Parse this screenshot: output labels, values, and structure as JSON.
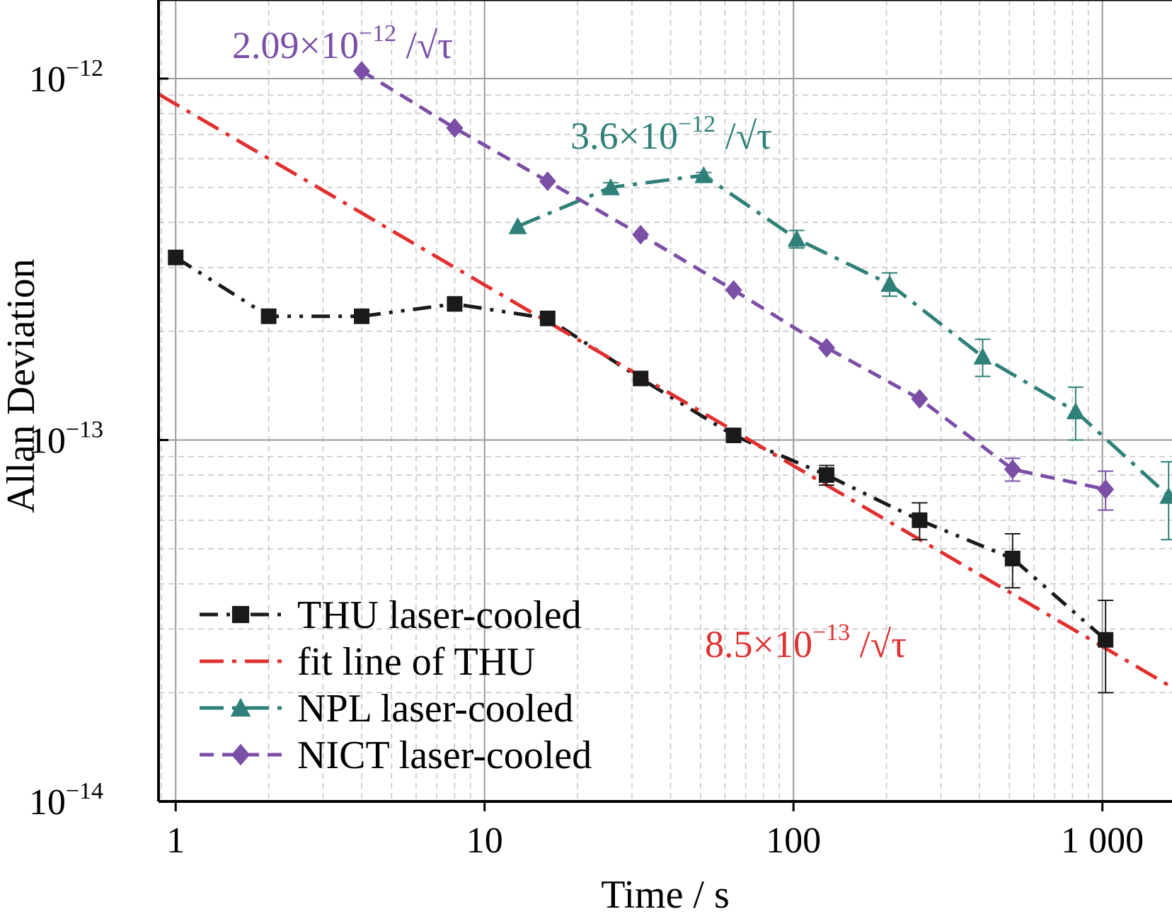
{
  "chart_data": {
    "type": "line",
    "x_scale": "log",
    "y_scale": "log",
    "xlim": [
      0.88,
      1680
    ],
    "ylim": [
      1e-14,
      1.65e-12
    ],
    "xlabel": "Time / s",
    "ylabel": "Allan Deviation",
    "grid": true,
    "legend_position": "bottom-left",
    "x_ticks": [
      {
        "value": 1,
        "label": "1"
      },
      {
        "value": 10,
        "label": "10"
      },
      {
        "value": 100,
        "label": "100"
      },
      {
        "value": 1000,
        "label": "1 000"
      }
    ],
    "y_ticks": [
      {
        "value": 1e-14,
        "base": "10",
        "exp": "−14"
      },
      {
        "value": 1e-13,
        "base": "10",
        "exp": "−13"
      },
      {
        "value": 1e-12,
        "base": "10",
        "exp": "−12"
      }
    ],
    "series": [
      {
        "name": "THU laser-cooled",
        "color": "#1a1a1a",
        "marker": "square",
        "dash": "dashdotdot",
        "x": [
          1,
          2,
          4,
          8,
          16,
          32,
          64,
          128,
          256,
          512,
          1024
        ],
        "y": [
          3.2e-13,
          2.2e-13,
          2.2e-13,
          2.38e-13,
          2.17e-13,
          1.48e-13,
          1.03e-13,
          8e-14,
          6e-14,
          4.7e-14,
          2.8e-14
        ],
        "err": [
          0,
          0,
          0,
          0,
          0,
          0,
          7e-16,
          5e-15,
          7e-15,
          8e-15,
          8e-15
        ]
      },
      {
        "name": "fit line of THU",
        "color": "#e03030",
        "marker": "none",
        "dash": "dashdot",
        "x": [
          0.88,
          1680
        ],
        "y": [
          9.06e-13,
          2.07e-14
        ]
      },
      {
        "name": "NPL laser-cooled",
        "color": "#2e8078",
        "marker": "triangle",
        "dash": "dashdot",
        "x": [
          12.8,
          25.6,
          51.2,
          102.4,
          204.8,
          409.6,
          819.2,
          1638.4
        ],
        "y": [
          3.9e-13,
          5e-13,
          5.4e-13,
          3.6e-13,
          2.7e-13,
          1.7e-13,
          1.2e-13,
          7e-14
        ],
        "err": [
          0,
          1.5e-14,
          1e-14,
          2e-14,
          2e-14,
          2e-14,
          2e-14,
          1.7e-14
        ]
      },
      {
        "name": "NICT laser-cooled",
        "color": "#7b4fa6",
        "marker": "diamond",
        "dash": "dash",
        "x": [
          4,
          8,
          16,
          32,
          64,
          128,
          256,
          512,
          1024
        ],
        "y": [
          1.05e-12,
          7.3e-13,
          5.2e-13,
          3.7e-13,
          2.6e-13,
          1.8e-13,
          1.3e-13,
          8.3e-14,
          7.3e-14
        ],
        "err": [
          0,
          0,
          0,
          0,
          0,
          0,
          0,
          6e-15,
          9e-15
        ]
      }
    ],
    "annotations": [
      {
        "id": "nict",
        "prefix": "2.09×10",
        "exp": "−12",
        "suffix": "/",
        "sym": "τ",
        "color": "#7b4fa6"
      },
      {
        "id": "npl",
        "prefix": "3.6×10",
        "exp": "−12",
        "suffix": "/",
        "sym": "τ",
        "color": "#2e8078"
      },
      {
        "id": "thu",
        "prefix": "8.5×10",
        "exp": "−13",
        "suffix": "/",
        "sym": "τ",
        "color": "#e03030"
      }
    ]
  }
}
